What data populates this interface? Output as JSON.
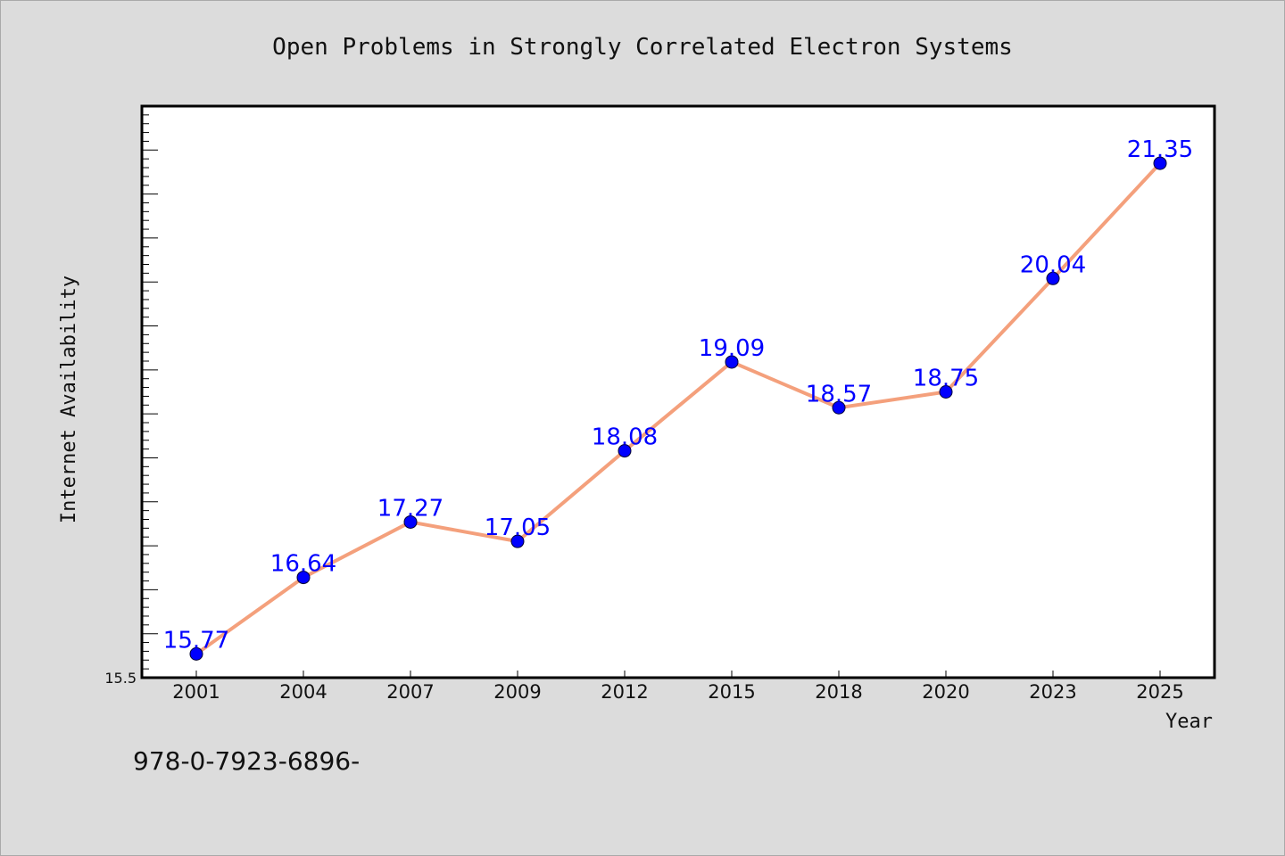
{
  "chart_data": {
    "type": "line",
    "title": "Open Problems in Strongly Correlated Electron Systems",
    "xlabel": "Year",
    "ylabel": "Internet Availability",
    "categories": [
      "2001",
      "2004",
      "2007",
      "2009",
      "2012",
      "2015",
      "2018",
      "2020",
      "2023",
      "2025"
    ],
    "series": [
      {
        "values": [
          15.77,
          16.64,
          17.27,
          17.05,
          18.08,
          19.09,
          18.57,
          18.75,
          20.04,
          21.35
        ],
        "labels": [
          "15.77",
          "16.64",
          "17.27",
          "17.05",
          "18.08",
          "19.09",
          "18.57",
          "18.75",
          "20.04",
          "21.35"
        ]
      }
    ],
    "ylim": [
      15.5,
      22.0
    ],
    "ytick_labels": [
      "15.5"
    ],
    "grid": false,
    "legend": "none",
    "colors": {
      "line": "#f4a07c",
      "marker": "#0000ff",
      "data_label": "#0000ff",
      "background": "#dcdcdc",
      "plot_area": "#ffffff"
    }
  },
  "footer": {
    "text": "978-0-7923-6896-"
  }
}
